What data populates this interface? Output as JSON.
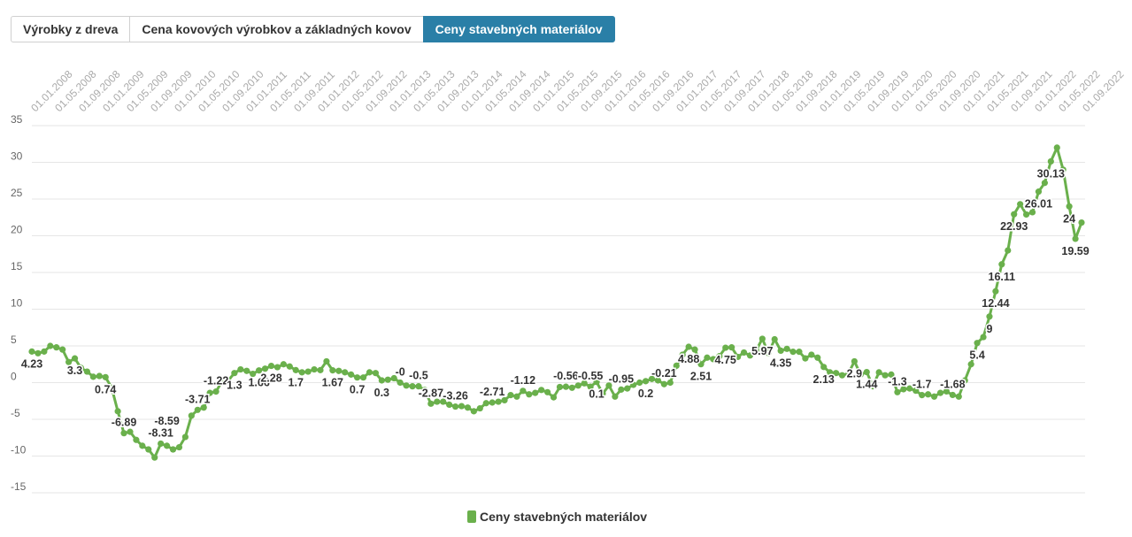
{
  "tabs": [
    {
      "label": "Výrobky z dreva",
      "active": false
    },
    {
      "label": "Cena kovových výrobkov a základných kovov",
      "active": false
    },
    {
      "label": "Ceny stavebných materiálov",
      "active": true
    }
  ],
  "legend": {
    "label": "Ceny stavebných materiálov",
    "color": "#6ab04c"
  },
  "colors": {
    "series": "#6ab04c",
    "tab_active_bg": "#2a7fa7",
    "grid": "#e6e6e6"
  },
  "chart_data": {
    "type": "line",
    "series": [
      {
        "name": "Ceny stavebných materiálov"
      }
    ],
    "x_tick_labels": [
      "01.01.2008",
      "01.05.2008",
      "01.09.2008",
      "01.01.2009",
      "01.05.2009",
      "01.09.2009",
      "01.01.2010",
      "01.05.2010",
      "01.09.2010",
      "01.01.2011",
      "01.05.2011",
      "01.09.2011",
      "01.01.2012",
      "01.05.2012",
      "01.09.2012",
      "01.01.2013",
      "01.05.2013",
      "01.09.2013",
      "01.01.2014",
      "01.05.2014",
      "01.09.2014",
      "01.01.2015",
      "01.05.2015",
      "01.09.2015",
      "01.01.2016",
      "01.05.2016",
      "01.09.2016",
      "01.01.2017",
      "01.05.2017",
      "01.09.2017",
      "01.01.2018",
      "01.05.2018",
      "01.09.2018",
      "01.01.2019",
      "01.05.2019",
      "01.09.2019",
      "01.01.2020",
      "01.05.2020",
      "01.09.2020",
      "01.01.2021",
      "01.05.2021",
      "01.09.2021",
      "01.01.2022",
      "01.05.2022",
      "01.09.2022"
    ],
    "y_ticks": [
      35,
      30,
      25,
      20,
      15,
      10,
      5,
      0,
      -5,
      -10,
      -15
    ],
    "y_tick_labels": [
      "35",
      "30",
      "25",
      "20",
      "15",
      "10",
      "5",
      "0",
      "-5",
      "-10",
      "-15"
    ],
    "ylim": [
      -15,
      35
    ],
    "points": [
      [
        0,
        4.23
      ],
      [
        1,
        4.0
      ],
      [
        2,
        4.23
      ],
      [
        3,
        5.0
      ],
      [
        4,
        4.8
      ],
      [
        5,
        4.5
      ],
      [
        6,
        2.8
      ],
      [
        7,
        3.3
      ],
      [
        8,
        2.0
      ],
      [
        9,
        1.5
      ],
      [
        10,
        0.8
      ],
      [
        11,
        0.9
      ],
      [
        12,
        0.74
      ],
      [
        13,
        -0.7
      ],
      [
        14,
        -3.9
      ],
      [
        15,
        -6.89
      ],
      [
        16,
        -6.7
      ],
      [
        17,
        -7.8
      ],
      [
        18,
        -8.6
      ],
      [
        19,
        -9.1
      ],
      [
        20,
        -10.2
      ],
      [
        21,
        -8.31
      ],
      [
        22,
        -8.6
      ],
      [
        23,
        -9.1
      ],
      [
        24,
        -8.8
      ],
      [
        25,
        -7.4
      ],
      [
        26,
        -4.5
      ],
      [
        27,
        -3.71
      ],
      [
        28,
        -3.4
      ],
      [
        29,
        -1.4
      ],
      [
        30,
        -1.22
      ],
      [
        31,
        0.2
      ],
      [
        32,
        0.3
      ],
      [
        33,
        1.3
      ],
      [
        34,
        1.8
      ],
      [
        35,
        1.6
      ],
      [
        36,
        1.2
      ],
      [
        37,
        1.66
      ],
      [
        38,
        1.9
      ],
      [
        39,
        2.28
      ],
      [
        40,
        2.1
      ],
      [
        41,
        2.5
      ],
      [
        42,
        2.2
      ],
      [
        43,
        1.7
      ],
      [
        44,
        1.4
      ],
      [
        45,
        1.5
      ],
      [
        46,
        1.8
      ],
      [
        47,
        1.7
      ],
      [
        48,
        2.9
      ],
      [
        49,
        1.67
      ],
      [
        50,
        1.6
      ],
      [
        51,
        1.4
      ],
      [
        52,
        1.1
      ],
      [
        53,
        0.7
      ],
      [
        54,
        0.7
      ],
      [
        55,
        1.4
      ],
      [
        56,
        1.3
      ],
      [
        57,
        0.3
      ],
      [
        58,
        0.4
      ],
      [
        59,
        0.6
      ],
      [
        60,
        0.0
      ],
      [
        61,
        -0.4
      ],
      [
        62,
        -0.5
      ],
      [
        63,
        -0.5
      ],
      [
        64,
        -1.0
      ],
      [
        65,
        -2.87
      ],
      [
        66,
        -2.6
      ],
      [
        67,
        -2.6
      ],
      [
        68,
        -3.0
      ],
      [
        69,
        -3.26
      ],
      [
        70,
        -3.2
      ],
      [
        71,
        -3.4
      ],
      [
        72,
        -3.9
      ],
      [
        73,
        -3.5
      ],
      [
        74,
        -2.8
      ],
      [
        75,
        -2.71
      ],
      [
        76,
        -2.6
      ],
      [
        77,
        -2.4
      ],
      [
        78,
        -1.7
      ],
      [
        79,
        -1.9
      ],
      [
        80,
        -1.12
      ],
      [
        81,
        -1.6
      ],
      [
        82,
        -1.4
      ],
      [
        83,
        -1.0
      ],
      [
        84,
        -1.3
      ],
      [
        85,
        -2.0
      ],
      [
        86,
        -0.6
      ],
      [
        87,
        -0.56
      ],
      [
        88,
        -0.7
      ],
      [
        89,
        -0.4
      ],
      [
        90,
        -0.1
      ],
      [
        91,
        -0.55
      ],
      [
        92,
        0.1
      ],
      [
        93,
        -1.5
      ],
      [
        94,
        -0.4
      ],
      [
        95,
        -1.9
      ],
      [
        96,
        -0.95
      ],
      [
        97,
        -0.8
      ],
      [
        98,
        -0.3
      ],
      [
        99,
        0.0
      ],
      [
        100,
        0.2
      ],
      [
        101,
        0.5
      ],
      [
        102,
        0.3
      ],
      [
        103,
        -0.21
      ],
      [
        104,
        0.0
      ],
      [
        105,
        2.3
      ],
      [
        106,
        3.8
      ],
      [
        107,
        4.88
      ],
      [
        108,
        4.5
      ],
      [
        109,
        2.51
      ],
      [
        110,
        3.4
      ],
      [
        111,
        3.2
      ],
      [
        112,
        3.6
      ],
      [
        113,
        4.75
      ],
      [
        114,
        4.8
      ],
      [
        115,
        3.5
      ],
      [
        116,
        4.1
      ],
      [
        117,
        3.7
      ],
      [
        118,
        4.4
      ],
      [
        119,
        5.97
      ],
      [
        120,
        4.0
      ],
      [
        121,
        5.9
      ],
      [
        122,
        4.35
      ],
      [
        123,
        4.6
      ],
      [
        124,
        4.2
      ],
      [
        125,
        4.2
      ],
      [
        126,
        3.3
      ],
      [
        127,
        3.8
      ],
      [
        128,
        3.4
      ],
      [
        129,
        2.13
      ],
      [
        130,
        1.4
      ],
      [
        131,
        1.3
      ],
      [
        132,
        1.0
      ],
      [
        133,
        1.2
      ],
      [
        134,
        2.9
      ],
      [
        135,
        1.1
      ],
      [
        136,
        1.44
      ],
      [
        137,
        -0.5
      ],
      [
        138,
        1.4
      ],
      [
        139,
        1.0
      ],
      [
        140,
        1.1
      ],
      [
        141,
        -1.3
      ],
      [
        142,
        -0.9
      ],
      [
        143,
        -0.8
      ],
      [
        144,
        -1.1
      ],
      [
        145,
        -1.7
      ],
      [
        146,
        -1.6
      ],
      [
        147,
        -1.9
      ],
      [
        148,
        -1.4
      ],
      [
        149,
        -1.2
      ],
      [
        150,
        -1.68
      ],
      [
        151,
        -1.9
      ],
      [
        152,
        0.3
      ],
      [
        153,
        2.5
      ],
      [
        154,
        5.4
      ],
      [
        155,
        6.2
      ],
      [
        156,
        9.0
      ],
      [
        157,
        12.44
      ],
      [
        158,
        16.11
      ],
      [
        159,
        18.0
      ],
      [
        160,
        22.93
      ],
      [
        161,
        24.3
      ],
      [
        162,
        22.9
      ],
      [
        163,
        23.2
      ],
      [
        164,
        26.01
      ],
      [
        165,
        27.2
      ],
      [
        166,
        30.13
      ],
      [
        167,
        32.0
      ],
      [
        168,
        29.0
      ],
      [
        169,
        24.0
      ],
      [
        170,
        19.59
      ],
      [
        171,
        21.8
      ]
    ],
    "data_labels": [
      {
        "i": 0,
        "text": "4.23",
        "pos": "below"
      },
      {
        "i": 7,
        "text": "3.3",
        "pos": "below"
      },
      {
        "i": 12,
        "text": "0.74",
        "pos": "below"
      },
      {
        "i": 15,
        "text": "-6.89",
        "pos": "above"
      },
      {
        "i": 21,
        "text": "-8.31",
        "pos": "above"
      },
      {
        "i": 22,
        "text": "-8.59",
        "pos": "above",
        "dy": -24
      },
      {
        "i": 27,
        "text": "-3.71",
        "pos": "above"
      },
      {
        "i": 30,
        "text": "-1.22",
        "pos": "above"
      },
      {
        "i": 33,
        "text": "1.3",
        "pos": "below"
      },
      {
        "i": 37,
        "text": "1.66",
        "pos": "below"
      },
      {
        "i": 39,
        "text": "2.28",
        "pos": "below"
      },
      {
        "i": 43,
        "text": "1.7",
        "pos": "below"
      },
      {
        "i": 49,
        "text": "1.67",
        "pos": "below"
      },
      {
        "i": 53,
        "text": "0.7",
        "pos": "below"
      },
      {
        "i": 57,
        "text": "0.3",
        "pos": "below"
      },
      {
        "i": 60,
        "text": "-0",
        "pos": "above"
      },
      {
        "i": 63,
        "text": "-0.5",
        "pos": "above"
      },
      {
        "i": 65,
        "text": "-2.87",
        "pos": "above"
      },
      {
        "i": 69,
        "text": "-3.26",
        "pos": "above"
      },
      {
        "i": 75,
        "text": "-2.71",
        "pos": "above"
      },
      {
        "i": 80,
        "text": "-1.12",
        "pos": "above"
      },
      {
        "i": 87,
        "text": "-0.56",
        "pos": "above"
      },
      {
        "i": 91,
        "text": "-0.55",
        "pos": "above"
      },
      {
        "i": 92,
        "text": "0.1",
        "pos": "below"
      },
      {
        "i": 96,
        "text": "-0.95",
        "pos": "above"
      },
      {
        "i": 100,
        "text": "0.2",
        "pos": "below"
      },
      {
        "i": 103,
        "text": "-0.21",
        "pos": "above"
      },
      {
        "i": 107,
        "text": "4.88",
        "pos": "below"
      },
      {
        "i": 109,
        "text": "2.51",
        "pos": "below"
      },
      {
        "i": 113,
        "text": "4.75",
        "pos": "below"
      },
      {
        "i": 119,
        "text": "5.97",
        "pos": "below"
      },
      {
        "i": 122,
        "text": "4.35",
        "pos": "below"
      },
      {
        "i": 129,
        "text": "2.13",
        "pos": "below"
      },
      {
        "i": 134,
        "text": "2.9",
        "pos": "below"
      },
      {
        "i": 136,
        "text": "1.44",
        "pos": "below"
      },
      {
        "i": 141,
        "text": "-1.3",
        "pos": "above"
      },
      {
        "i": 145,
        "text": "-1.7",
        "pos": "above"
      },
      {
        "i": 150,
        "text": "-1.68",
        "pos": "above"
      },
      {
        "i": 154,
        "text": "5.4",
        "pos": "below"
      },
      {
        "i": 156,
        "text": "9",
        "pos": "below"
      },
      {
        "i": 157,
        "text": "12.44",
        "pos": "below"
      },
      {
        "i": 158,
        "text": "16.11",
        "pos": "below"
      },
      {
        "i": 160,
        "text": "22.93",
        "pos": "below"
      },
      {
        "i": 164,
        "text": "26.01",
        "pos": "below"
      },
      {
        "i": 166,
        "text": "30.13",
        "pos": "below"
      },
      {
        "i": 169,
        "text": "24",
        "pos": "below"
      },
      {
        "i": 170,
        "text": "19.59",
        "pos": "below"
      }
    ]
  }
}
